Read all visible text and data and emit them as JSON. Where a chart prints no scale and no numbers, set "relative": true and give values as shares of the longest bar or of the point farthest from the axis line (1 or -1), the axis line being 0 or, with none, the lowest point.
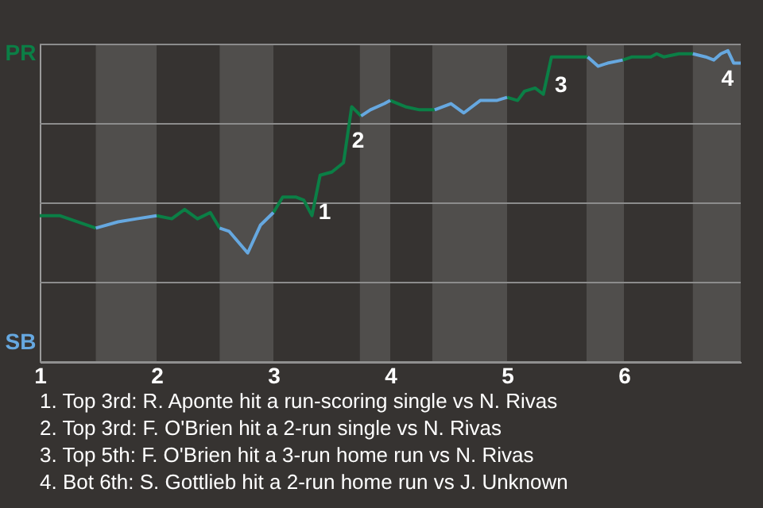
{
  "chart_data": {
    "type": "line",
    "relative": true,
    "x": [
      1.0,
      1.17,
      1.48,
      1.67,
      1.83,
      2.0,
      2.13,
      2.24,
      2.35,
      2.46,
      2.54,
      2.62,
      2.78,
      2.89,
      3.0,
      3.08,
      3.19,
      3.26,
      3.33,
      3.4,
      3.5,
      3.6,
      3.67,
      3.75,
      3.83,
      3.95,
      4.0,
      4.13,
      4.25,
      4.38,
      4.52,
      4.63,
      4.77,
      4.91,
      5.0,
      5.09,
      5.15,
      5.24,
      5.31,
      5.38,
      5.69,
      5.78,
      5.86,
      5.99,
      6.07,
      6.23,
      6.28,
      6.34,
      6.47,
      6.59,
      6.7,
      6.77,
      6.83,
      6.89,
      6.94,
      7.0
    ],
    "series": [
      {
        "name": "PR",
        "color": "#0b7f46",
        "values": [
          0.47,
          0.47,
          0.43,
          null,
          null,
          0.47,
          0.46,
          0.49,
          0.46,
          0.48,
          0.43,
          null,
          null,
          null,
          0.48,
          0.53,
          0.53,
          0.52,
          0.47,
          0.6,
          0.61,
          0.64,
          0.82,
          0.79,
          null,
          null,
          0.84,
          0.82,
          0.81,
          0.81,
          null,
          null,
          null,
          null,
          0.85,
          0.84,
          0.87,
          0.88,
          0.86,
          0.98,
          0.98,
          null,
          null,
          0.97,
          0.98,
          0.98,
          0.99,
          0.98,
          0.99,
          0.99,
          null,
          null,
          null,
          null,
          null,
          null
        ]
      },
      {
        "name": "SB",
        "color": "#66a8e0",
        "values": [
          null,
          null,
          0.43,
          0.45,
          0.46,
          0.47,
          null,
          null,
          null,
          null,
          0.43,
          0.42,
          0.35,
          0.44,
          0.48,
          null,
          null,
          null,
          null,
          null,
          null,
          null,
          null,
          0.79,
          0.81,
          0.83,
          0.84,
          null,
          null,
          0.81,
          0.83,
          0.8,
          0.84,
          0.84,
          0.85,
          null,
          null,
          null,
          null,
          null,
          0.98,
          0.95,
          0.96,
          0.97,
          null,
          null,
          null,
          null,
          null,
          0.99,
          0.98,
          0.97,
          0.99,
          1,
          0.96,
          0.96
        ]
      }
    ],
    "xlim": [
      1,
      7
    ],
    "xticks": [
      1,
      2,
      3,
      4,
      5,
      6
    ],
    "bands": [
      {
        "axis": "x",
        "from": 1.48,
        "to": 2.0,
        "color": "#504e4c"
      },
      {
        "axis": "x",
        "from": 2.54,
        "to": 3.0,
        "color": "#504e4c"
      },
      {
        "axis": "x",
        "from": 3.74,
        "to": 4.0,
        "color": "#504e4c"
      },
      {
        "axis": "x",
        "from": 4.36,
        "to": 5.0,
        "color": "#504e4c"
      },
      {
        "axis": "x",
        "from": 5.68,
        "to": 6.0,
        "color": "#504e4c"
      },
      {
        "axis": "x",
        "from": 6.59,
        "to": 7.0,
        "color": "#504e4c"
      }
    ],
    "grid": "y",
    "annotations": [
      {
        "text": "1",
        "x": 3.33,
        "y": 0.47
      },
      {
        "text": "2",
        "x": 3.67,
        "y": 0.82
      },
      {
        "text": "3",
        "x": 5.38,
        "y": 0.98
      },
      {
        "text": "4",
        "x": 6.94,
        "y": 0.96
      },
      "1. Top 3rd: R. Aponte hit a run-scoring single vs N. Rivas",
      "2. Top 3rd: F. O'Brien hit a 2-run single vs N. Rivas",
      "3. Top 5th: F. O'Brien hit a 3-run home run vs N. Rivas",
      "4. Bot 6th: S. Gottlieb hit a 2-run home run vs J. Unknown"
    ]
  }
}
